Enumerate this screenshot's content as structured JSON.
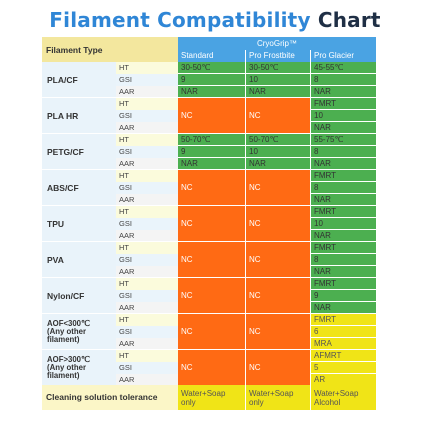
{
  "title": {
    "part1": "Filament Compatibility",
    "part2": "Chart"
  },
  "header": {
    "filament_type": "Filament Type",
    "group": "CryoGrip™",
    "columns": [
      "Standard",
      "Pro Frostbite",
      "Pro Glacier"
    ]
  },
  "subrow_labels": [
    "HT",
    "GSI",
    "AAR"
  ],
  "colors": {
    "red": "#ff6a14",
    "green": "#4caf50",
    "yellow": "#f0e417",
    "header_blue": "#4aa3e3",
    "filament_cell": "#e9f3fa",
    "filament_header": "#f3e79e",
    "subrow_ht": "#fbfbdc",
    "subrow_gsi": "#eaf4fb",
    "subrow_aar": "#f4f4f4",
    "footer_label": "#fbf6c7",
    "title_blue": "#2f86d6",
    "title_dark": "#1f2f45"
  },
  "footer": {
    "label": "Cleaning solution tolerance",
    "values": [
      [
        "Water+Soap",
        "only"
      ],
      [
        "Water+Soap",
        "only"
      ],
      [
        "Water+Soap",
        "Alcohol"
      ]
    ]
  },
  "chart_data": {
    "type": "table",
    "title": "Filament Compatibility Chart",
    "column_group": "CryoGrip™",
    "columns": [
      "Standard",
      "Pro Frostbite",
      "Pro Glacier"
    ],
    "rows": [
      {
        "filament": [
          "PLA/CF"
        ],
        "merged": [
          false,
          false,
          false
        ],
        "cells": {
          "Standard": [
            [
              "30-50℃",
              "green"
            ],
            [
              "9",
              "green"
            ],
            [
              "NAR",
              "green"
            ]
          ],
          "Pro Frostbite": [
            [
              "30-50℃",
              "green"
            ],
            [
              "10",
              "green"
            ],
            [
              "NAR",
              "green"
            ]
          ],
          "Pro Glacier": [
            [
              "45-55℃",
              "green"
            ],
            [
              "8",
              "green"
            ],
            [
              "NAR",
              "green"
            ]
          ]
        }
      },
      {
        "filament": [
          "PLA HR"
        ],
        "merged": [
          true,
          true,
          false
        ],
        "cells": {
          "Standard": [
            [
              "NC",
              "red"
            ]
          ],
          "Pro Frostbite": [
            [
              "NC",
              "red"
            ]
          ],
          "Pro Glacier": [
            [
              "FMRT",
              "green"
            ],
            [
              "10",
              "green"
            ],
            [
              "NAR",
              "green"
            ]
          ]
        }
      },
      {
        "filament": [
          "PETG/CF"
        ],
        "merged": [
          false,
          false,
          false
        ],
        "cells": {
          "Standard": [
            [
              "50-70℃",
              "green"
            ],
            [
              "9",
              "green"
            ],
            [
              "NAR",
              "green"
            ]
          ],
          "Pro Frostbite": [
            [
              "50-70℃",
              "green"
            ],
            [
              "10",
              "green"
            ],
            [
              "NAR",
              "green"
            ]
          ],
          "Pro Glacier": [
            [
              "55-75℃",
              "green"
            ],
            [
              "8",
              "green"
            ],
            [
              "NAR",
              "green"
            ]
          ]
        }
      },
      {
        "filament": [
          "ABS/CF"
        ],
        "merged": [
          true,
          true,
          false
        ],
        "cells": {
          "Standard": [
            [
              "NC",
              "red"
            ]
          ],
          "Pro Frostbite": [
            [
              "NC",
              "red"
            ]
          ],
          "Pro Glacier": [
            [
              "FMRT",
              "green"
            ],
            [
              "8",
              "green"
            ],
            [
              "NAR",
              "green"
            ]
          ]
        }
      },
      {
        "filament": [
          "TPU"
        ],
        "merged": [
          true,
          true,
          false
        ],
        "cells": {
          "Standard": [
            [
              "NC",
              "red"
            ]
          ],
          "Pro Frostbite": [
            [
              "NC",
              "red"
            ]
          ],
          "Pro Glacier": [
            [
              "FMRT",
              "green"
            ],
            [
              "10",
              "green"
            ],
            [
              "NAR",
              "green"
            ]
          ]
        }
      },
      {
        "filament": [
          "PVA"
        ],
        "merged": [
          true,
          true,
          false
        ],
        "cells": {
          "Standard": [
            [
              "NC",
              "red"
            ]
          ],
          "Pro Frostbite": [
            [
              "NC",
              "red"
            ]
          ],
          "Pro Glacier": [
            [
              "FMRT",
              "green"
            ],
            [
              "8",
              "green"
            ],
            [
              "NAR",
              "green"
            ]
          ]
        }
      },
      {
        "filament": [
          "Nylon/CF"
        ],
        "merged": [
          true,
          true,
          false
        ],
        "cells": {
          "Standard": [
            [
              "NC",
              "red"
            ]
          ],
          "Pro Frostbite": [
            [
              "NC",
              "red"
            ]
          ],
          "Pro Glacier": [
            [
              "FMRT",
              "green"
            ],
            [
              "9",
              "green"
            ],
            [
              "NAR",
              "green"
            ]
          ]
        }
      },
      {
        "filament": [
          "AOF<300℃",
          "(Any other",
          "filament)"
        ],
        "merged": [
          true,
          true,
          false
        ],
        "cells": {
          "Standard": [
            [
              "NC",
              "red"
            ]
          ],
          "Pro Frostbite": [
            [
              "NC",
              "red"
            ]
          ],
          "Pro Glacier": [
            [
              "FMRT",
              "yellow"
            ],
            [
              "6",
              "yellow"
            ],
            [
              "MRA",
              "yellow"
            ]
          ]
        }
      },
      {
        "filament": [
          "AOF>300℃",
          "(Any other",
          "filament)"
        ],
        "merged": [
          true,
          true,
          false
        ],
        "cells": {
          "Standard": [
            [
              "NC",
              "red"
            ]
          ],
          "Pro Frostbite": [
            [
              "NC",
              "red"
            ]
          ],
          "Pro Glacier": [
            [
              "AFMRT",
              "yellow"
            ],
            [
              "5",
              "yellow"
            ],
            [
              "AR",
              "yellow"
            ]
          ]
        }
      }
    ],
    "footer_row": {
      "label": "Cleaning solution tolerance",
      "Standard": "Water+Soap only",
      "Pro Frostbite": "Water+Soap only",
      "Pro Glacier": "Water+Soap Alcohol"
    }
  }
}
